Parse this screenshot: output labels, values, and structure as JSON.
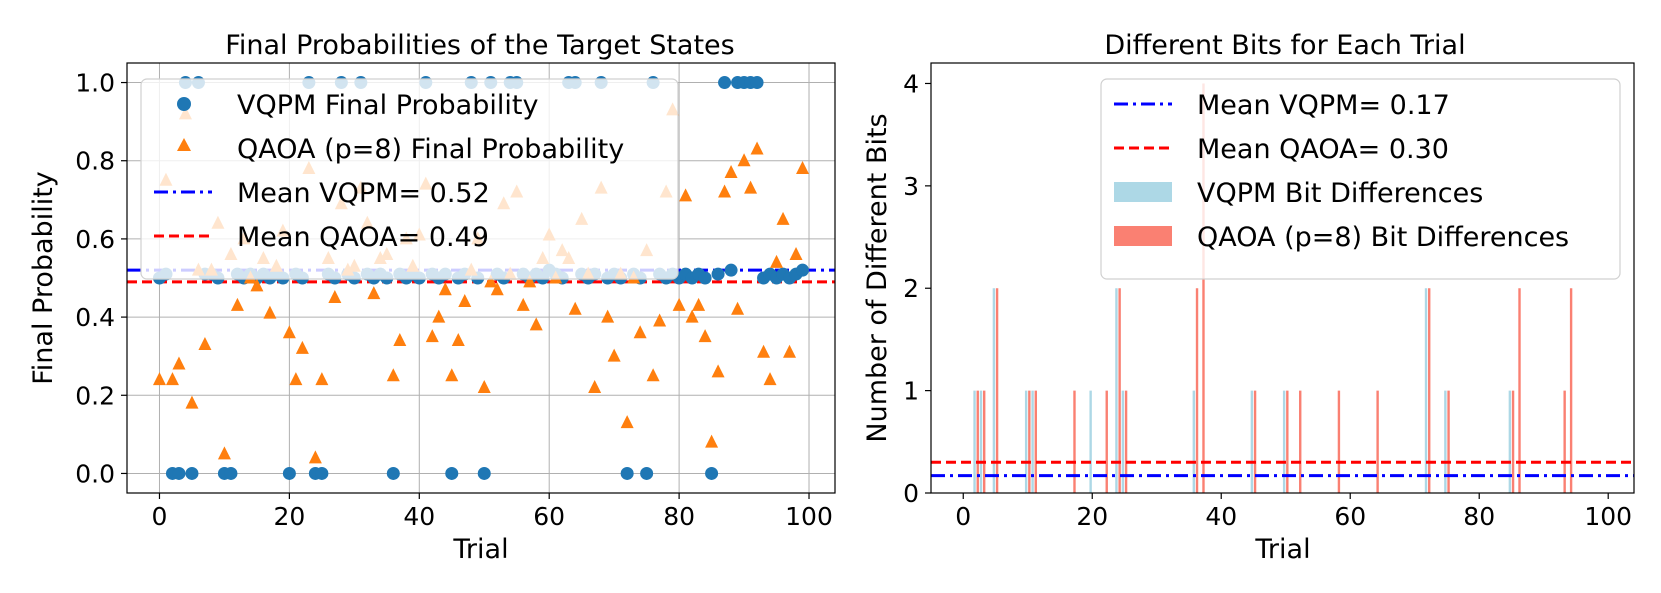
{
  "colors": {
    "vqpm_marker": "#1f77b4",
    "qaoa_marker": "#ff7f0e",
    "vqpm_mean": "#0000ff",
    "qaoa_mean": "#ff0000",
    "vqpm_bar": "#add8e6",
    "qaoa_bar": "#fa8072"
  },
  "chart_data": [
    {
      "type": "scatter",
      "title": "Final Probabilities of the Target States",
      "xlabel": "Trial",
      "ylabel": "Final Probability",
      "xlim": [
        -5,
        104
      ],
      "ylim": [
        -0.05,
        1.05
      ],
      "xticks": [
        0,
        20,
        40,
        60,
        80,
        100
      ],
      "xtick_labels": [
        "0",
        "20",
        "40",
        "60",
        "80",
        "100"
      ],
      "yticks": [
        0.0,
        0.2,
        0.4,
        0.6,
        0.8,
        1.0
      ],
      "ytick_labels": [
        "0.0",
        "0.2",
        "0.4",
        "0.6",
        "0.8",
        "1.0"
      ],
      "grid": true,
      "legend_position": "upper-left",
      "series": [
        {
          "name": "VQPM Final Probability",
          "marker": "circle",
          "x": [
            0,
            1,
            2,
            3,
            4,
            5,
            6,
            7,
            8,
            9,
            10,
            11,
            12,
            13,
            14,
            15,
            16,
            17,
            18,
            19,
            20,
            21,
            22,
            23,
            24,
            25,
            26,
            27,
            28,
            29,
            30,
            31,
            32,
            33,
            34,
            35,
            36,
            37,
            38,
            39,
            40,
            41,
            42,
            43,
            44,
            45,
            46,
            47,
            48,
            49,
            50,
            51,
            52,
            53,
            54,
            55,
            56,
            57,
            58,
            59,
            60,
            61,
            62,
            63,
            64,
            65,
            66,
            67,
            68,
            69,
            70,
            71,
            72,
            73,
            74,
            75,
            76,
            77,
            78,
            79,
            80,
            81,
            82,
            83,
            84,
            85,
            86,
            87,
            88,
            89,
            90,
            91,
            92,
            93,
            94,
            95,
            96,
            97,
            98,
            99
          ],
          "y": [
            0.5,
            0.51,
            0.0,
            0.0,
            1.0,
            0.0,
            1.0,
            0.51,
            0.51,
            0.5,
            0.0,
            0.0,
            0.51,
            0.5,
            0.51,
            0.5,
            0.51,
            0.5,
            0.51,
            0.5,
            0.0,
            0.51,
            0.5,
            1.0,
            0.0,
            0.0,
            0.51,
            0.5,
            1.0,
            0.51,
            0.5,
            1.0,
            0.51,
            0.5,
            0.51,
            0.5,
            0.0,
            0.51,
            0.5,
            0.51,
            0.5,
            1.0,
            0.51,
            0.5,
            0.51,
            0.0,
            0.5,
            0.51,
            1.0,
            0.5,
            0.0,
            1.0,
            0.51,
            0.5,
            1.0,
            1.0,
            0.51,
            0.5,
            0.51,
            0.5,
            0.52,
            0.51,
            0.5,
            1.0,
            1.0,
            0.51,
            0.5,
            0.51,
            1.0,
            0.5,
            0.51,
            0.5,
            0.0,
            0.51,
            0.5,
            0.0,
            1.0,
            0.51,
            0.5,
            0.51,
            0.5,
            0.51,
            0.5,
            0.51,
            0.5,
            0.0,
            0.51,
            1.0,
            0.52,
            1.0,
            1.0,
            1.0,
            1.0,
            0.5,
            0.51,
            0.5,
            0.51,
            0.5,
            0.51,
            0.52
          ]
        },
        {
          "name": "QAOA (p=8) Final Probability",
          "marker": "triangle",
          "x": [
            0,
            1,
            2,
            3,
            4,
            5,
            6,
            7,
            8,
            9,
            10,
            11,
            12,
            13,
            14,
            15,
            16,
            17,
            18,
            19,
            20,
            21,
            22,
            23,
            24,
            25,
            26,
            27,
            28,
            29,
            30,
            31,
            32,
            33,
            34,
            35,
            36,
            37,
            38,
            39,
            40,
            41,
            42,
            43,
            44,
            45,
            46,
            47,
            48,
            49,
            50,
            51,
            52,
            53,
            54,
            55,
            56,
            57,
            58,
            59,
            60,
            61,
            62,
            63,
            64,
            65,
            66,
            67,
            68,
            69,
            70,
            71,
            72,
            73,
            74,
            75,
            76,
            77,
            78,
            79,
            80,
            81,
            82,
            83,
            84,
            85,
            86,
            87,
            88,
            89,
            90,
            91,
            92,
            93,
            94,
            95,
            96,
            97,
            98,
            99
          ],
          "y": [
            0.24,
            0.75,
            0.24,
            0.28,
            0.92,
            0.18,
            0.52,
            0.33,
            0.52,
            0.64,
            0.05,
            0.56,
            0.43,
            0.6,
            0.5,
            0.48,
            0.55,
            0.41,
            0.53,
            0.62,
            0.36,
            0.24,
            0.32,
            0.78,
            0.04,
            0.24,
            0.55,
            0.45,
            0.69,
            0.52,
            0.53,
            0.73,
            0.64,
            0.46,
            0.55,
            0.56,
            0.25,
            0.34,
            0.6,
            0.53,
            0.61,
            0.74,
            0.35,
            0.4,
            0.47,
            0.25,
            0.34,
            0.44,
            0.52,
            0.6,
            0.22,
            0.49,
            0.47,
            0.69,
            0.51,
            0.72,
            0.43,
            0.49,
            0.38,
            0.55,
            0.61,
            0.5,
            0.57,
            0.55,
            0.42,
            0.65,
            0.51,
            0.22,
            0.73,
            0.4,
            0.3,
            0.51,
            0.13,
            0.5,
            0.36,
            0.57,
            0.25,
            0.39,
            0.72,
            0.93,
            0.43,
            0.71,
            0.4,
            0.43,
            0.35,
            0.08,
            0.26,
            0.72,
            0.77,
            0.42,
            0.8,
            0.73,
            0.83,
            0.31,
            0.24,
            0.54,
            0.65,
            0.31,
            0.56,
            0.78
          ]
        }
      ],
      "mean_lines": [
        {
          "name": "Mean VQPM= 0.52",
          "value": 0.52,
          "style": "dash-dot"
        },
        {
          "name": "Mean QAOA= 0.49",
          "value": 0.49,
          "style": "dashed"
        }
      ]
    },
    {
      "type": "bar",
      "title": "Different Bits for Each Trial",
      "xlabel": "Trial",
      "ylabel": "Number of Different Bits",
      "xlim": [
        -5,
        104
      ],
      "ylim": [
        0,
        4.2
      ],
      "xticks": [
        0,
        20,
        40,
        60,
        80,
        100
      ],
      "xtick_labels": [
        "0",
        "20",
        "40",
        "60",
        "80",
        "100"
      ],
      "yticks": [
        0,
        1,
        2,
        3,
        4
      ],
      "ytick_labels": [
        "0",
        "1",
        "2",
        "3",
        "4"
      ],
      "grid": false,
      "legend_position": "upper-right",
      "series": [
        {
          "name": "VQPM Bit Differences",
          "x": [
            2,
            3,
            5,
            10,
            11,
            20,
            24,
            25,
            36,
            45,
            50,
            72,
            75,
            85
          ],
          "values": [
            1,
            1,
            2,
            1,
            1,
            1,
            2,
            1,
            1,
            1,
            1,
            2,
            1,
            1
          ]
        },
        {
          "name": "QAOA (p=8) Bit Differences",
          "x": [
            2,
            3,
            5,
            10,
            11,
            17,
            22,
            24,
            25,
            36,
            37,
            45,
            50,
            52,
            58,
            64,
            72,
            75,
            85,
            86,
            93,
            94
          ],
          "values": [
            1,
            1,
            2,
            1,
            1,
            1,
            1,
            2,
            1,
            2,
            4,
            1,
            1,
            1,
            1,
            1,
            2,
            1,
            1,
            2,
            1,
            2
          ]
        }
      ],
      "mean_lines": [
        {
          "name": "Mean VQPM= 0.17",
          "value": 0.17,
          "style": "dash-dot"
        },
        {
          "name": "Mean QAOA= 0.30",
          "value": 0.3,
          "style": "dashed"
        }
      ]
    }
  ]
}
